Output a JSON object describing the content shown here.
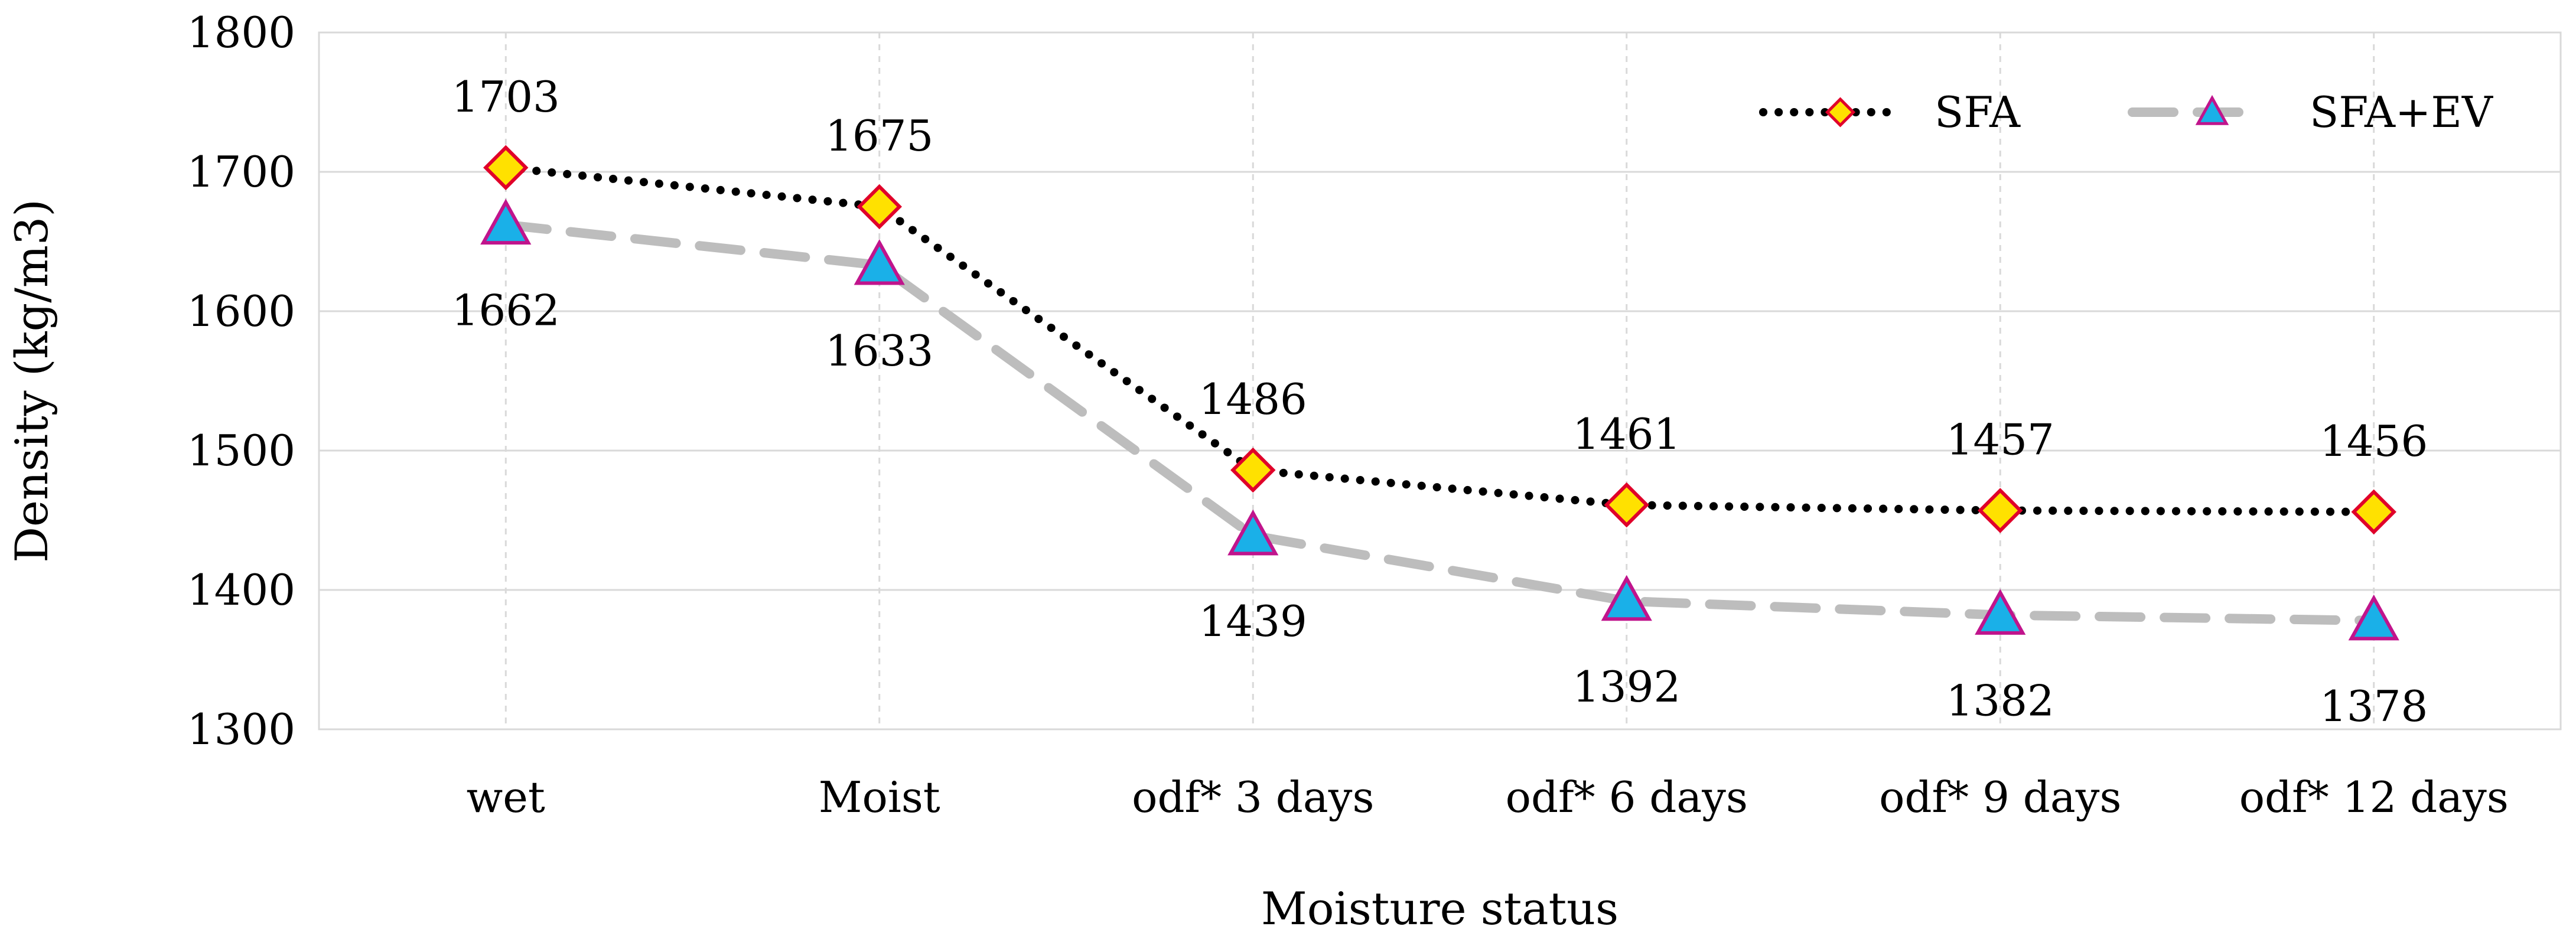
{
  "chart_data": {
    "type": "line",
    "xlabel": "Moisture status",
    "ylabel": "Density (kg/m3)",
    "ylim": [
      1300,
      1800
    ],
    "yticks": [
      1300,
      1400,
      1500,
      1600,
      1700,
      1800
    ],
    "grid": "horizontal",
    "legend_position": "top-right",
    "categories": [
      "wet",
      "Moist",
      "odf* 3 days",
      "odf* 6 days",
      "odf* 9 days",
      "odf* 12 days"
    ],
    "series": [
      {
        "name": "SFA",
        "values": [
          1703,
          1675,
          1486,
          1461,
          1457,
          1456
        ],
        "line_style": "dotted",
        "line_color": "#000000",
        "marker": "diamond",
        "marker_fill": "#ffe100",
        "marker_stroke": "#e0002a",
        "label_position": "above"
      },
      {
        "name": "SFA+EV",
        "values": [
          1662,
          1633,
          1439,
          1392,
          1382,
          1378
        ],
        "line_style": "dashed",
        "line_color": "#bdbdbd",
        "marker": "triangle",
        "marker_fill": "#1ab0e8",
        "marker_stroke": "#c0148c",
        "label_position": "below"
      }
    ]
  }
}
